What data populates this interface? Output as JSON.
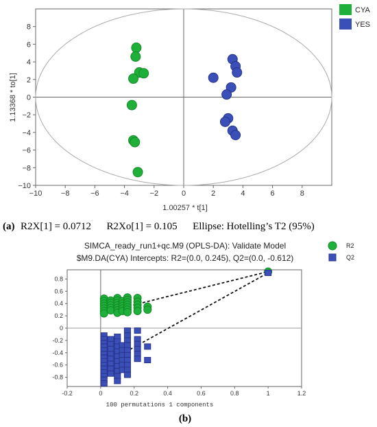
{
  "colors": {
    "green": "#1fb03a",
    "green_stroke": "#138a27",
    "blue": "#3b4fb8",
    "blue_stroke": "#26348a",
    "axis": "#666666",
    "ellipse": "#aaaaaa"
  },
  "chart_data": [
    {
      "type": "scatter",
      "xlabel": "1.00257 * t[1]",
      "ylabel": "1.13368 * to[1]",
      "xlim": [
        -10,
        10
      ],
      "ylim": [
        -10,
        10
      ],
      "xticks": [
        -10,
        -8,
        -6,
        -4,
        -2,
        0,
        2,
        4,
        6,
        8
      ],
      "yticks": [
        -10,
        -8,
        -6,
        -4,
        -2,
        0,
        2,
        4,
        6,
        8
      ],
      "legend": "top-right",
      "ellipse": {
        "rx": 10,
        "ry": 10
      },
      "series": [
        {
          "name": "CYA",
          "color": "green",
          "points": [
            [
              -3.2,
              5.6
            ],
            [
              -3.25,
              4.6
            ],
            [
              -3.0,
              2.8
            ],
            [
              -2.7,
              2.7
            ],
            [
              -3.4,
              2.1
            ],
            [
              -3.5,
              -0.9
            ],
            [
              -3.4,
              -4.9
            ],
            [
              -3.3,
              -5.1
            ],
            [
              -3.1,
              -8.5
            ]
          ]
        },
        {
          "name": "YES",
          "color": "blue",
          "points": [
            [
              3.3,
              4.3
            ],
            [
              3.5,
              3.5
            ],
            [
              3.6,
              2.8
            ],
            [
              2.0,
              2.2
            ],
            [
              3.2,
              1.1
            ],
            [
              2.9,
              0.3
            ],
            [
              3.0,
              -2.4
            ],
            [
              2.8,
              -2.8
            ],
            [
              3.3,
              -3.8
            ],
            [
              3.5,
              -4.3
            ]
          ]
        }
      ],
      "caption": {
        "label": "(a)",
        "text": "R2X[1] = 0.0712      R2Xo[1] = 0.105      Ellipse: Hotelling’s T2 (95%)"
      }
    },
    {
      "type": "scatter",
      "title": "SIMCA_ready_run1+qc.M9 (OPLS-DA): Validate Model",
      "subtitle": "$M9.DA(CYA) Intercepts: R2=(0.0, 0.245), Q2=(0.0, -0.612)",
      "xlabel": "100 permutations 1 components",
      "xlim": [
        -0.2,
        1.2
      ],
      "ylim": [
        -0.95,
        0.95
      ],
      "xticks": [
        -0.2,
        0,
        0.2,
        0.4,
        0.6,
        0.8,
        1,
        1.2
      ],
      "yticks": [
        0.8,
        0.6,
        0.4,
        0.2,
        0,
        -0.2,
        -0.4,
        -0.6,
        -0.8
      ],
      "legend": "top-right",
      "series": [
        {
          "name": "R2",
          "color": "green",
          "marker": "circle",
          "points": [
            [
              0.02,
              0.48
            ],
            [
              0.02,
              0.44
            ],
            [
              0.02,
              0.4
            ],
            [
              0.02,
              0.36
            ],
            [
              0.02,
              0.32
            ],
            [
              0.02,
              0.28
            ],
            [
              0.02,
              0.24
            ],
            [
              0.06,
              0.45
            ],
            [
              0.06,
              0.41
            ],
            [
              0.06,
              0.37
            ],
            [
              0.06,
              0.33
            ],
            [
              0.06,
              0.29
            ],
            [
              0.1,
              0.49
            ],
            [
              0.1,
              0.45
            ],
            [
              0.1,
              0.41
            ],
            [
              0.1,
              0.37
            ],
            [
              0.1,
              0.33
            ],
            [
              0.1,
              0.29
            ],
            [
              0.1,
              0.25
            ],
            [
              0.13,
              0.44
            ],
            [
              0.13,
              0.4
            ],
            [
              0.13,
              0.36
            ],
            [
              0.13,
              0.32
            ],
            [
              0.13,
              0.28
            ],
            [
              0.16,
              0.5
            ],
            [
              0.16,
              0.46
            ],
            [
              0.16,
              0.42
            ],
            [
              0.16,
              0.38
            ],
            [
              0.16,
              0.34
            ],
            [
              0.16,
              0.3
            ],
            [
              0.16,
              0.26
            ],
            [
              0.22,
              0.49
            ],
            [
              0.22,
              0.43
            ],
            [
              0.22,
              0.38
            ],
            [
              0.22,
              0.33
            ],
            [
              0.22,
              0.28
            ],
            [
              0.28,
              0.35
            ],
            [
              0.28,
              0.3
            ],
            [
              1,
              0.92
            ]
          ]
        },
        {
          "name": "Q2",
          "color": "blue",
          "marker": "square",
          "points": [
            [
              0.02,
              -0.12
            ],
            [
              0.02,
              -0.18
            ],
            [
              0.02,
              -0.24
            ],
            [
              0.02,
              -0.3
            ],
            [
              0.02,
              -0.36
            ],
            [
              0.02,
              -0.42
            ],
            [
              0.02,
              -0.48
            ],
            [
              0.02,
              -0.54
            ],
            [
              0.02,
              -0.6
            ],
            [
              0.02,
              -0.66
            ],
            [
              0.02,
              -0.72
            ],
            [
              0.02,
              -0.78
            ],
            [
              0.02,
              -0.84
            ],
            [
              0.02,
              -0.9
            ],
            [
              0.06,
              -0.18
            ],
            [
              0.06,
              -0.26
            ],
            [
              0.06,
              -0.34
            ],
            [
              0.06,
              -0.42
            ],
            [
              0.06,
              -0.5
            ],
            [
              0.06,
              -0.58
            ],
            [
              0.06,
              -0.66
            ],
            [
              0.06,
              -0.74
            ],
            [
              0.1,
              -0.14
            ],
            [
              0.1,
              -0.22
            ],
            [
              0.1,
              -0.3
            ],
            [
              0.1,
              -0.38
            ],
            [
              0.1,
              -0.46
            ],
            [
              0.1,
              -0.54
            ],
            [
              0.1,
              -0.62
            ],
            [
              0.1,
              -0.7
            ],
            [
              0.1,
              -0.78
            ],
            [
              0.1,
              -0.86
            ],
            [
              0.13,
              -0.28
            ],
            [
              0.13,
              -0.36
            ],
            [
              0.13,
              -0.44
            ],
            [
              0.13,
              -0.52
            ],
            [
              0.13,
              -0.6
            ],
            [
              0.13,
              -0.68
            ],
            [
              0.16,
              -0.04
            ],
            [
              0.16,
              -0.12
            ],
            [
              0.16,
              -0.2
            ],
            [
              0.16,
              -0.28
            ],
            [
              0.16,
              -0.36
            ],
            [
              0.16,
              -0.44
            ],
            [
              0.16,
              -0.52
            ],
            [
              0.16,
              -0.6
            ],
            [
              0.16,
              -0.68
            ],
            [
              0.16,
              -0.76
            ],
            [
              0.22,
              -0.04
            ],
            [
              0.22,
              -0.18
            ],
            [
              0.22,
              -0.26
            ],
            [
              0.22,
              -0.34
            ],
            [
              0.22,
              -0.42
            ],
            [
              0.22,
              -0.5
            ],
            [
              0.28,
              -0.3
            ],
            [
              0.28,
              -0.52
            ],
            [
              1,
              0.9
            ]
          ]
        }
      ],
      "regression_lines": [
        {
          "name": "R2",
          "from": [
            0,
            0.245
          ],
          "to": [
            1,
            0.92
          ]
        },
        {
          "name": "Q2",
          "from": [
            0,
            -0.612
          ],
          "to": [
            1,
            0.9
          ]
        }
      ],
      "caption": {
        "label": "(b)"
      }
    }
  ]
}
